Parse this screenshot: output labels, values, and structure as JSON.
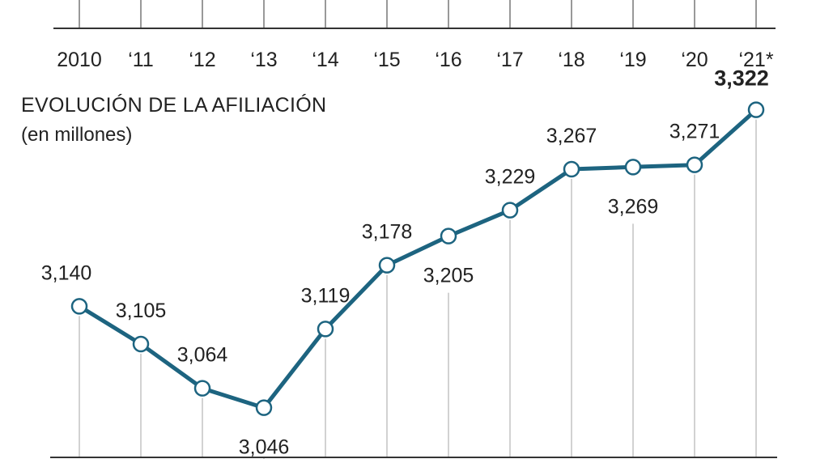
{
  "chart_data": {
    "type": "line",
    "title": "EVOLUCIÓN DE LA AFILIACIÓN",
    "subtitle": "(en millones)",
    "categories": [
      "2010",
      "‘11",
      "‘12",
      "‘13",
      "‘14",
      "‘15",
      "‘16",
      "‘17",
      "‘18",
      "‘19",
      "‘20",
      "‘21*"
    ],
    "values": [
      3.14,
      3.105,
      3.064,
      3.046,
      3.119,
      3.178,
      3.205,
      3.229,
      3.267,
      3.269,
      3.271,
      3.322
    ],
    "value_labels": [
      "3,140",
      "3,105",
      "3,064",
      "3,046",
      "3,119",
      "3,178",
      "3,205",
      "3,229",
      "3,267",
      "3,269",
      "3,271",
      "3,322"
    ],
    "label_position": [
      "above",
      "above",
      "above",
      "below",
      "above",
      "above",
      "below",
      "above",
      "above",
      "below",
      "above",
      "above"
    ],
    "highlight_last": true,
    "ylim": [
      3.0,
      3.36
    ],
    "line_color": "#1d6480",
    "marker_fill": "#ffffff",
    "grid": "vertical-drop-lines",
    "legend": "none"
  }
}
